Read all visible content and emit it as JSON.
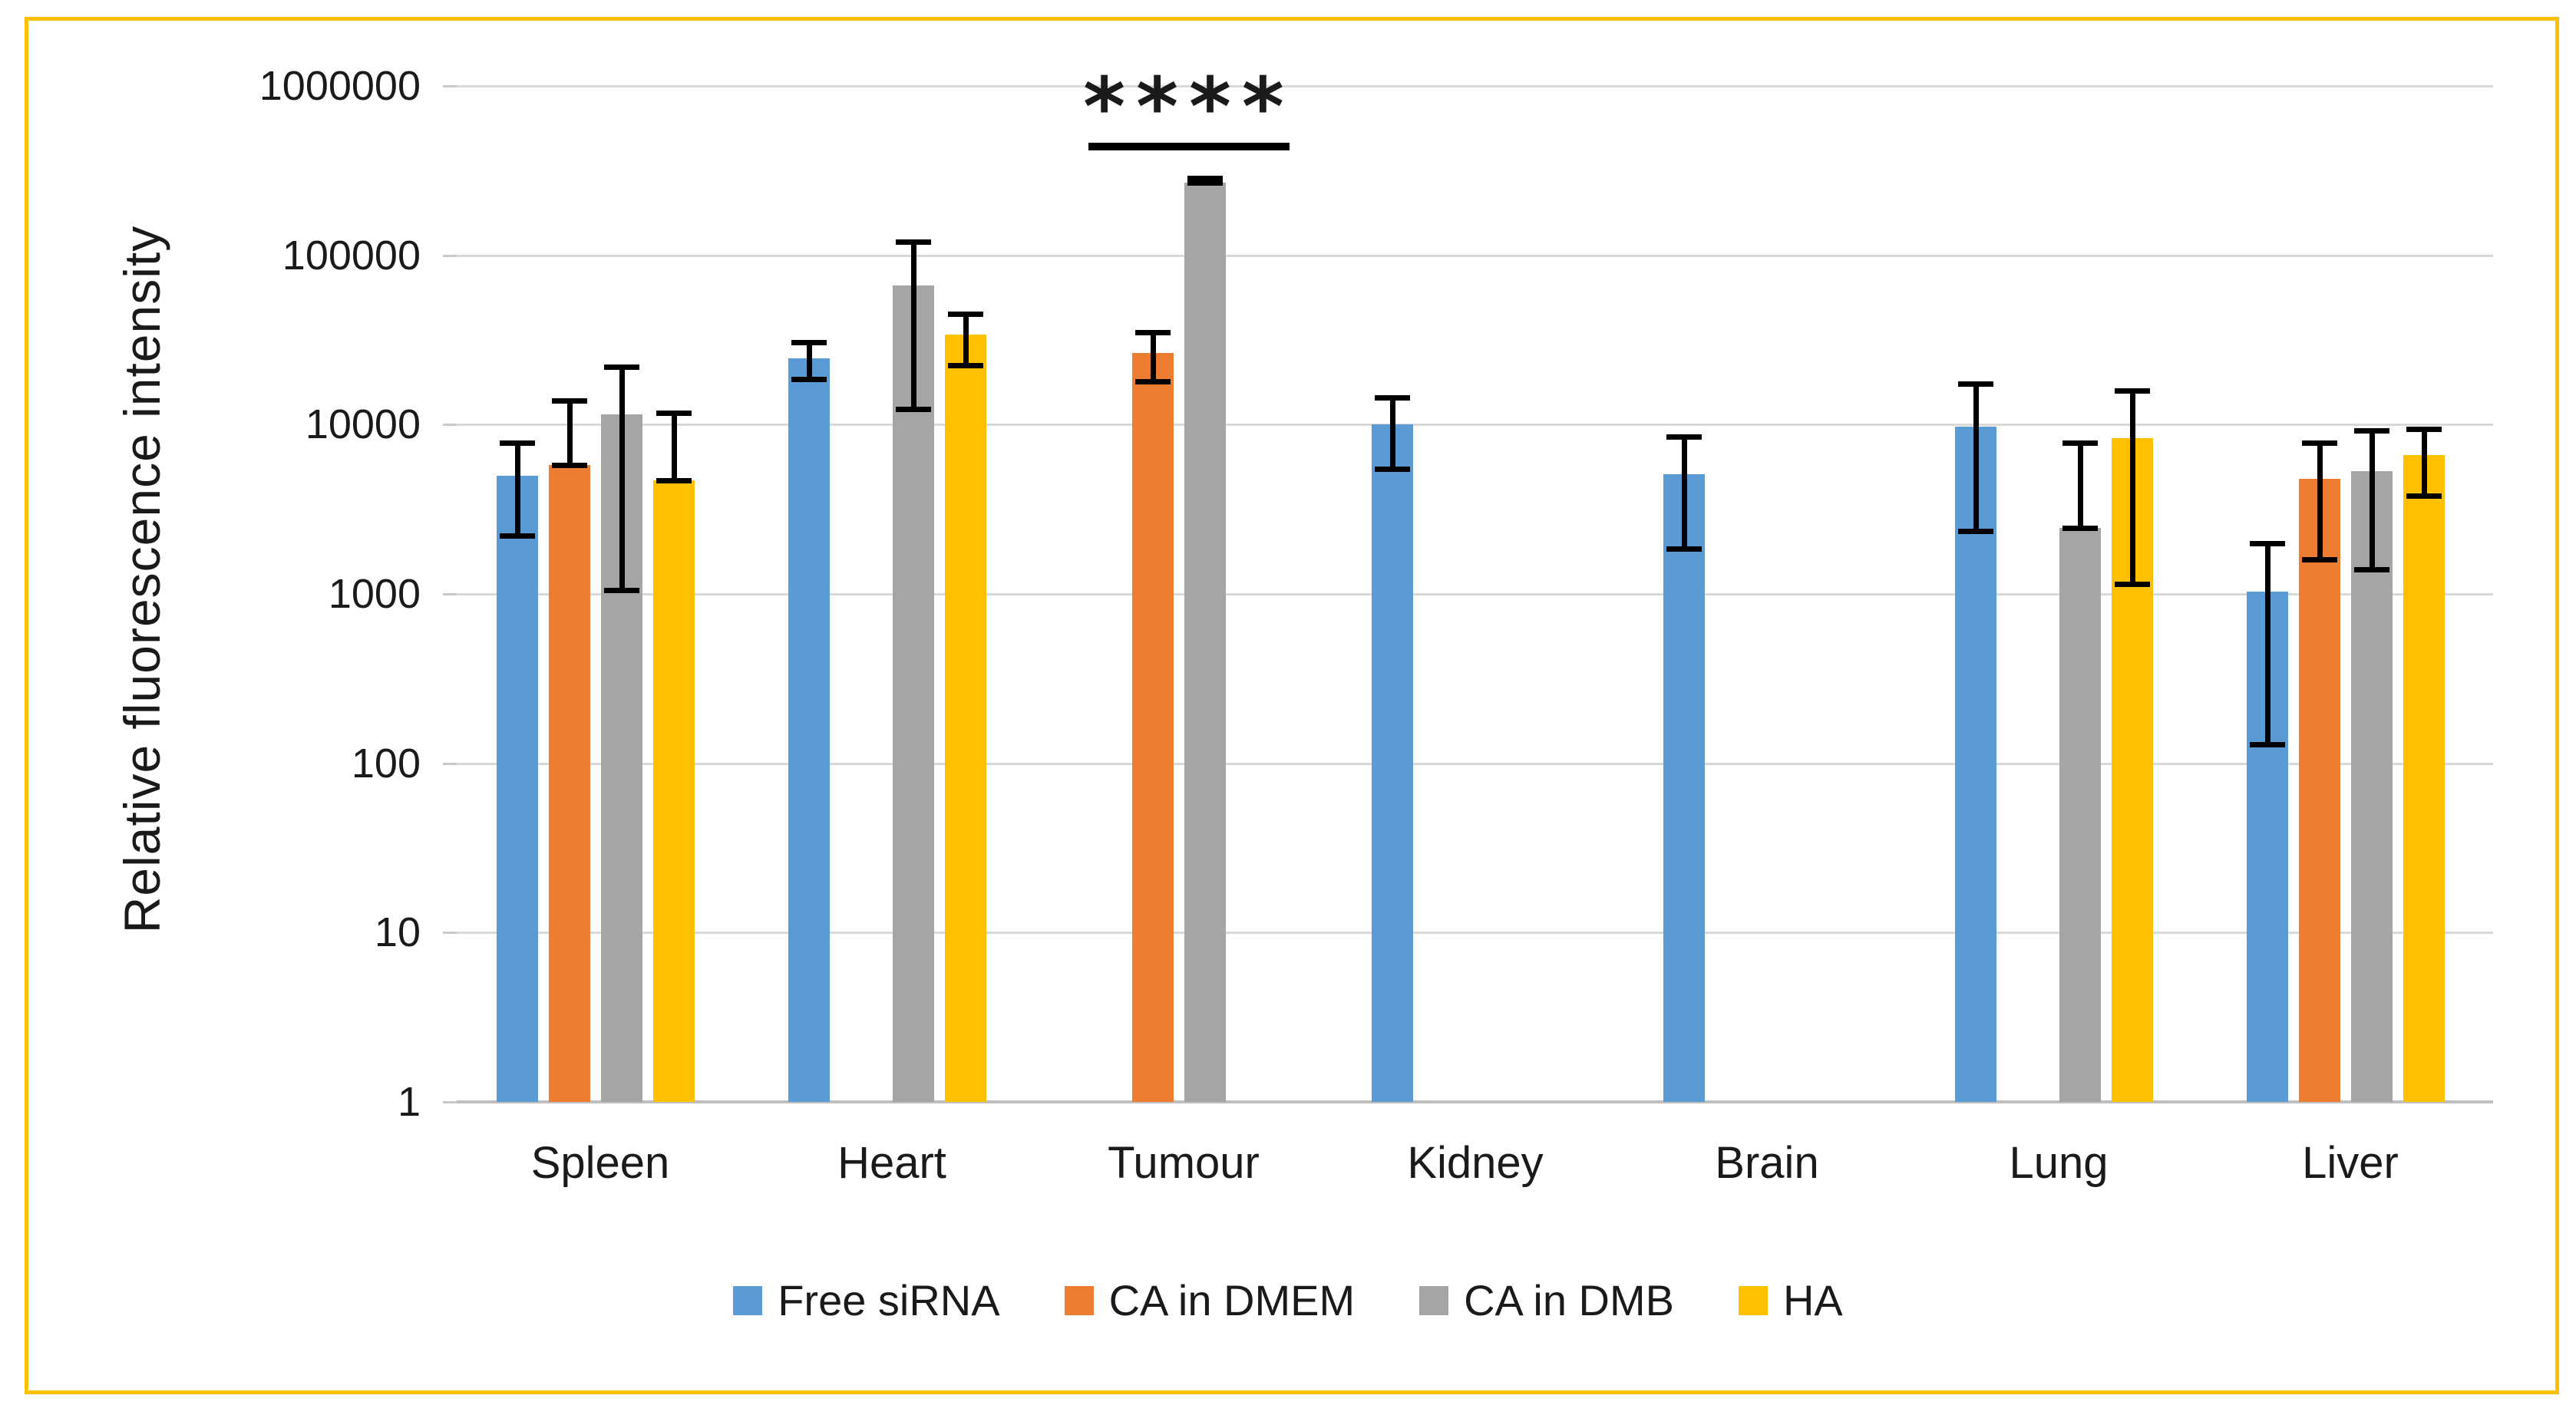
{
  "page": {
    "background": "#FFFFFF",
    "border_color": "#FFC000"
  },
  "chart_data": {
    "type": "bar",
    "title": "",
    "xlabel": "",
    "ylabel": "Relative fluorescence intensity",
    "scale": "log10",
    "ylim": [
      1,
      1000000
    ],
    "grid": "horizontal",
    "legend_position": "bottom-center",
    "ytick_labels": [
      "1",
      "10",
      "100",
      "1000",
      "10000",
      "100000",
      "1000000"
    ],
    "categories": [
      "Spleen",
      "Heart",
      "Tumour",
      "Kidney",
      "Brain",
      "Lung",
      "Liver"
    ],
    "series": [
      {
        "name": "Free siRNA",
        "color": "#5B9BD5",
        "values": [
          5000,
          24500,
          null,
          10000,
          5100,
          9700,
          1030
        ],
        "err_low": [
          2200,
          18500,
          null,
          5500,
          1850,
          2350,
          130
        ],
        "err_high": [
          7800,
          30500,
          null,
          14500,
          8500,
          17500,
          2000
        ]
      },
      {
        "name": "CA in DMEM",
        "color": "#ED7D31",
        "values": [
          5800,
          null,
          26500,
          null,
          null,
          null,
          4800
        ],
        "err_low": [
          null,
          null,
          18000,
          null,
          null,
          null,
          1600
        ],
        "err_high": [
          13800,
          null,
          35000,
          null,
          null,
          null,
          7800
        ]
      },
      {
        "name": "CA in DMB",
        "color": "#A5A5A5",
        "values": [
          11500,
          66000,
          268000,
          null,
          null,
          2450,
          5300
        ],
        "err_low": [
          1050,
          12300,
          null,
          null,
          null,
          null,
          1400
        ],
        "err_high": [
          22000,
          120000,
          285000,
          null,
          null,
          7800,
          9200
        ]
      },
      {
        "name": "HA",
        "color": "#FFC000",
        "values": [
          4700,
          34000,
          null,
          null,
          null,
          8300,
          6600
        ],
        "err_low": [
          null,
          22500,
          null,
          null,
          null,
          1150,
          3800
        ],
        "err_high": [
          11700,
          45000,
          null,
          null,
          null,
          15800,
          9400
        ]
      }
    ],
    "annotation": {
      "text": "****",
      "category": "Tumour",
      "line_y_value": 460000
    },
    "colors": {
      "gridline": "#D9D9D9",
      "axis_line": "#BFBFBF",
      "error_bar": "#000000",
      "text": "#1A1A1A"
    }
  }
}
